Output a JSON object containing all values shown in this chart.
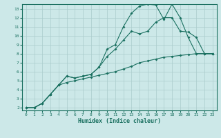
{
  "xlabel": "Humidex (Indice chaleur)",
  "bg_color": "#cce8e8",
  "grid_color": "#aacccc",
  "line_color": "#1a7060",
  "xlim_min": -0.5,
  "xlim_max": 23.5,
  "ylim_min": 1.7,
  "ylim_max": 13.5,
  "xticks": [
    0,
    1,
    2,
    3,
    4,
    5,
    6,
    7,
    8,
    9,
    10,
    11,
    12,
    13,
    14,
    15,
    16,
    17,
    18,
    19,
    20,
    21,
    22,
    23
  ],
  "yticks": [
    2,
    3,
    4,
    5,
    6,
    7,
    8,
    9,
    10,
    11,
    12,
    13
  ],
  "line1_x": [
    0,
    1,
    2,
    3,
    4,
    5,
    6,
    7,
    8,
    9,
    10,
    11,
    12,
    13,
    14,
    15,
    16,
    17,
    18,
    19,
    20,
    21,
    22,
    23
  ],
  "line1_y": [
    2,
    2,
    2.5,
    3.5,
    4.5,
    4.8,
    5.0,
    5.2,
    5.4,
    5.6,
    5.8,
    6.0,
    6.3,
    6.6,
    7.0,
    7.2,
    7.4,
    7.6,
    7.7,
    7.8,
    7.9,
    8.0,
    8.0,
    8.0
  ],
  "line2_x": [
    0,
    1,
    2,
    3,
    4,
    5,
    6,
    7,
    8,
    9,
    10,
    11,
    12,
    13,
    14,
    15,
    16,
    17,
    18,
    19,
    20,
    21,
    22,
    23
  ],
  "line2_y": [
    2,
    2,
    2.5,
    3.5,
    4.5,
    5.5,
    5.3,
    5.5,
    5.7,
    6.5,
    7.7,
    8.5,
    9.5,
    10.5,
    10.2,
    10.5,
    11.5,
    12.0,
    12.0,
    10.5,
    10.4,
    9.8,
    8.0,
    8.0
  ],
  "line3_x": [
    0,
    1,
    2,
    3,
    4,
    5,
    6,
    7,
    8,
    9,
    10,
    11,
    12,
    13,
    14,
    15,
    16,
    17,
    18,
    19,
    20,
    21,
    22,
    23
  ],
  "line3_y": [
    2,
    2,
    2.5,
    3.5,
    4.5,
    5.5,
    5.3,
    5.5,
    5.7,
    6.5,
    8.5,
    9.0,
    11.0,
    12.5,
    13.3,
    13.5,
    13.4,
    11.8,
    13.5,
    12.0,
    9.8,
    8.0,
    8.0,
    8.0
  ]
}
